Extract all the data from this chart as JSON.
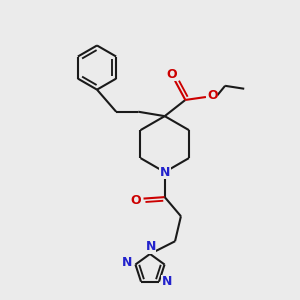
{
  "bg_color": "#ebebeb",
  "bond_color": "#1a1a1a",
  "nitrogen_color": "#2222cc",
  "oxygen_color": "#cc0000",
  "line_width": 1.5,
  "fig_size": [
    3.0,
    3.0
  ],
  "dpi": 100,
  "xlim": [
    0,
    10
  ],
  "ylim": [
    0,
    10
  ]
}
